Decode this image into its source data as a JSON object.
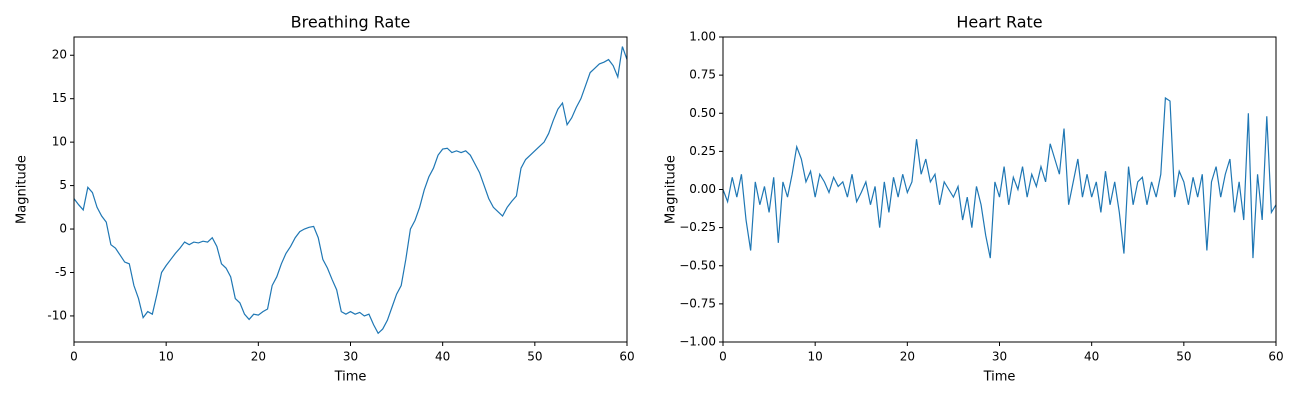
{
  "chart_data": [
    {
      "type": "line",
      "title": "Breathing Rate",
      "xlabel": "Time",
      "ylabel": "Magnitude",
      "xlim": [
        0,
        60
      ],
      "ylim": [
        -13,
        22.1
      ],
      "xticks": [
        0,
        10,
        20,
        30,
        40,
        50,
        60
      ],
      "yticks": [
        -10,
        -5,
        0,
        5,
        10,
        15,
        20
      ],
      "x": [
        0,
        0.5,
        1,
        1.5,
        2,
        2.5,
        3,
        3.5,
        4,
        4.5,
        5,
        5.5,
        6,
        6.5,
        7,
        7.5,
        8,
        8.5,
        9,
        9.5,
        10,
        10.5,
        11,
        11.5,
        12,
        12.5,
        13,
        13.5,
        14,
        14.5,
        15,
        15.5,
        16,
        16.5,
        17,
        17.5,
        18,
        18.5,
        19,
        19.5,
        20,
        20.5,
        21,
        21.5,
        22,
        22.5,
        23,
        23.5,
        24,
        24.5,
        25,
        25.5,
        26,
        26.5,
        27,
        27.5,
        28,
        28.5,
        29,
        29.5,
        30,
        30.5,
        31,
        31.5,
        32,
        32.5,
        33,
        33.5,
        34,
        34.5,
        35,
        35.5,
        36,
        36.5,
        37,
        37.5,
        38,
        38.5,
        39,
        39.5,
        40,
        40.5,
        41,
        41.5,
        42,
        42.5,
        43,
        43.5,
        44,
        44.5,
        45,
        45.5,
        46,
        46.5,
        47,
        47.5,
        48,
        48.5,
        49,
        49.5,
        50,
        50.5,
        51,
        51.5,
        52,
        52.5,
        53,
        53.5,
        54,
        54.5,
        55,
        55.5,
        56,
        56.5,
        57,
        57.5,
        58,
        58.5,
        59,
        59.5,
        60
      ],
      "series": [
        {
          "color": "#1f77b4",
          "values": [
            3.5,
            2.8,
            2.2,
            4.8,
            4.2,
            2.5,
            1.5,
            0.8,
            -1.8,
            -2.2,
            -3,
            -3.8,
            -4,
            -6.5,
            -8,
            -10.2,
            -9.5,
            -9.8,
            -7.5,
            -5,
            -4.2,
            -3.5,
            -2.8,
            -2.2,
            -1.5,
            -1.8,
            -1.5,
            -1.6,
            -1.4,
            -1.5,
            -1,
            -2,
            -4,
            -4.5,
            -5.5,
            -8,
            -8.5,
            -9.8,
            -10.4,
            -9.8,
            -9.9,
            -9.5,
            -9.2,
            -6.5,
            -5.5,
            -4,
            -2.8,
            -2,
            -1,
            -0.3,
            0,
            0.2,
            0.3,
            -1,
            -3.5,
            -4.5,
            -5.8,
            -7,
            -9.5,
            -9.8,
            -9.5,
            -9.8,
            -9.6,
            -10,
            -9.8,
            -11,
            -12,
            -11.5,
            -10.5,
            -9,
            -7.5,
            -6.5,
            -3.5,
            0,
            1,
            2.5,
            4.5,
            6,
            7,
            8.5,
            9.2,
            9.3,
            8.8,
            9,
            8.8,
            9,
            8.5,
            7.5,
            6.5,
            5,
            3.5,
            2.5,
            2,
            1.5,
            2.5,
            3.2,
            3.8,
            7,
            8,
            8.5,
            9,
            9.5,
            10,
            11,
            12.5,
            13.8,
            14.5,
            12,
            12.8,
            14,
            15,
            16.5,
            18,
            18.5,
            19,
            19.2,
            19.5,
            18.8,
            17.5,
            21,
            19.5
          ]
        }
      ]
    },
    {
      "type": "line",
      "title": "Heart Rate",
      "xlabel": "Time",
      "ylabel": "Magnitude",
      "xlim": [
        0,
        60
      ],
      "ylim": [
        -1,
        1
      ],
      "xticks": [
        0,
        10,
        20,
        30,
        40,
        50,
        60
      ],
      "yticks": [
        {
          "value": -1,
          "label": "−1.00"
        },
        {
          "value": -0.75,
          "label": "−0.75"
        },
        {
          "value": -0.5,
          "label": "−0.50"
        },
        {
          "value": -0.25,
          "label": "−0.25"
        },
        {
          "value": 0,
          "label": "0.00"
        },
        {
          "value": 0.25,
          "label": "0.25"
        },
        {
          "value": 0.5,
          "label": "0.50"
        },
        {
          "value": 0.75,
          "label": "0.75"
        },
        {
          "value": 1,
          "label": "1.00"
        }
      ],
      "x": [
        0,
        0.5,
        1,
        1.5,
        2,
        2.5,
        3,
        3.5,
        4,
        4.5,
        5,
        5.5,
        6,
        6.5,
        7,
        7.5,
        8,
        8.5,
        9,
        9.5,
        10,
        10.5,
        11,
        11.5,
        12,
        12.5,
        13,
        13.5,
        14,
        14.5,
        15,
        15.5,
        16,
        16.5,
        17,
        17.5,
        18,
        18.5,
        19,
        19.5,
        20,
        20.5,
        21,
        21.5,
        22,
        22.5,
        23,
        23.5,
        24,
        24.5,
        25,
        25.5,
        26,
        26.5,
        27,
        27.5,
        28,
        28.5,
        29,
        29.5,
        30,
        30.5,
        31,
        31.5,
        32,
        32.5,
        33,
        33.5,
        34,
        34.5,
        35,
        35.5,
        36,
        36.5,
        37,
        37.5,
        38,
        38.5,
        39,
        39.5,
        40,
        40.5,
        41,
        41.5,
        42,
        42.5,
        43,
        43.5,
        44,
        44.5,
        45,
        45.5,
        46,
        46.5,
        47,
        47.5,
        48,
        48.5,
        49,
        49.5,
        50,
        50.5,
        51,
        51.5,
        52,
        52.5,
        53,
        53.5,
        54,
        54.5,
        55,
        55.5,
        56,
        56.5,
        57,
        57.5,
        58,
        58.5,
        59,
        59.5,
        60
      ],
      "series": [
        {
          "color": "#1f77b4",
          "values": [
            0,
            -0.08,
            0.08,
            -0.05,
            0.1,
            -0.2,
            -0.4,
            0.05,
            -0.1,
            0.02,
            -0.15,
            0.08,
            -0.35,
            0.05,
            -0.05,
            0.1,
            0.28,
            0.2,
            0.05,
            0.12,
            -0.05,
            0.1,
            0.05,
            -0.02,
            0.08,
            0.02,
            0.05,
            -0.05,
            0.1,
            -0.08,
            -0.02,
            0.05,
            -0.1,
            0.02,
            -0.25,
            0.05,
            -0.15,
            0.08,
            -0.05,
            0.1,
            -0.02,
            0.05,
            0.33,
            0.1,
            0.2,
            0.05,
            0.1,
            -0.1,
            0.05,
            0,
            -0.05,
            0.02,
            -0.2,
            -0.05,
            -0.25,
            0.02,
            -0.1,
            -0.3,
            -0.45,
            0.05,
            -0.05,
            0.15,
            -0.1,
            0.08,
            0,
            0.15,
            -0.05,
            0.1,
            0.02,
            0.15,
            0.05,
            0.3,
            0.2,
            0.1,
            0.4,
            -0.1,
            0.05,
            0.2,
            -0.05,
            0.1,
            -0.05,
            0.05,
            -0.15,
            0.12,
            -0.1,
            0.05,
            -0.15,
            -0.42,
            0.15,
            -0.1,
            0.05,
            0.08,
            -0.1,
            0.05,
            -0.05,
            0.1,
            0.6,
            0.58,
            -0.05,
            0.12,
            0.05,
            -0.1,
            0.08,
            -0.05,
            0.1,
            -0.4,
            0.05,
            0.15,
            -0.05,
            0.1,
            0.2,
            -0.15,
            0.05,
            -0.2,
            0.5,
            -0.45,
            0.1,
            -0.2,
            0.48,
            -0.15,
            -0.1
          ]
        }
      ]
    }
  ]
}
